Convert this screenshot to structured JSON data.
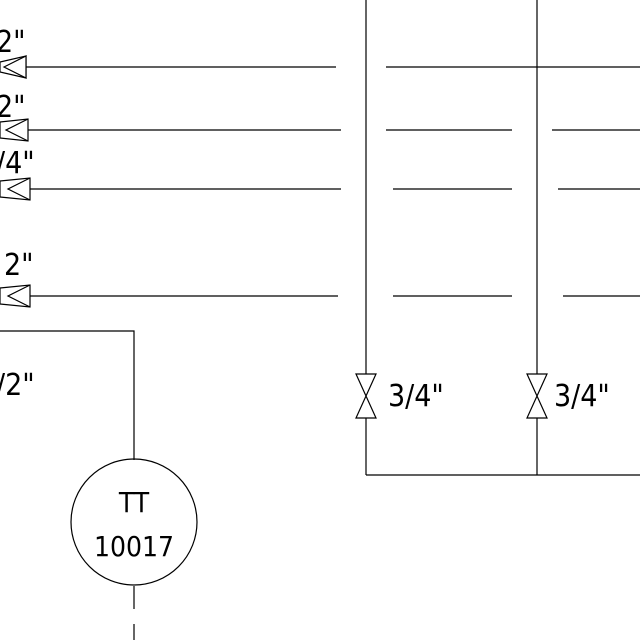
{
  "drawing": {
    "colors": {
      "background": "#ffffff",
      "line": "#000000"
    },
    "pipe_labels": {
      "row1": "2\"",
      "row2": "2\"",
      "row3": "/4\"",
      "row4": "2\"",
      "row5": "/2\""
    },
    "valve_labels": {
      "left_drop": "3/4\"",
      "right_drop": "3/4\""
    },
    "instrument": {
      "line1": "TT",
      "line2": "10017"
    }
  }
}
